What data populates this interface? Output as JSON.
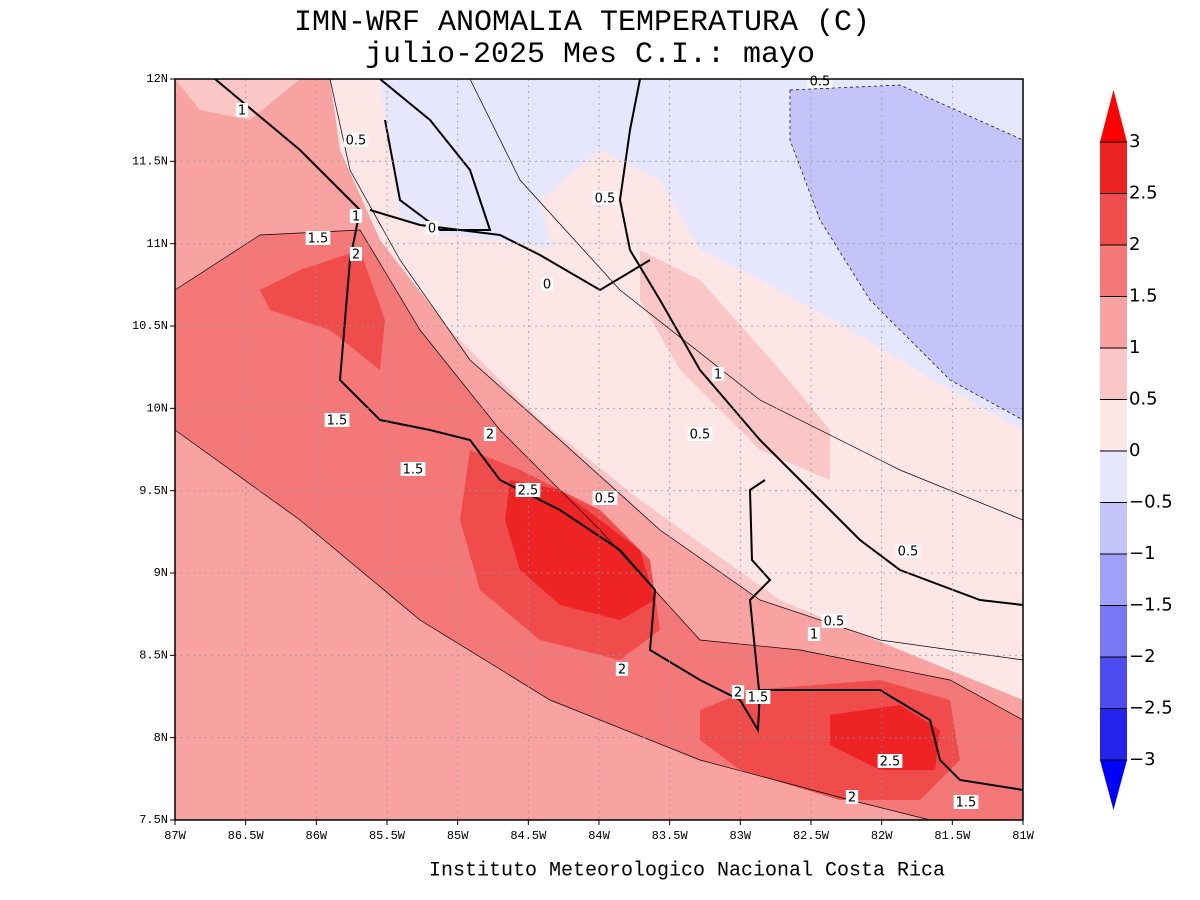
{
  "header": {
    "title": "IMN-WRF  ANOMALIA TEMPERATURA (C)",
    "subtitle": "julio-2025 Mes C.I.: mayo"
  },
  "footer": "Instituto Meteorologico Nacional Costa Rica",
  "x_axis": {
    "ticks": [
      "87W",
      "86.5W",
      "86W",
      "85.5W",
      "85W",
      "84.5W",
      "84W",
      "83.5W",
      "83W",
      "82.5W",
      "82W",
      "81.5W",
      "81W"
    ]
  },
  "y_axis": {
    "ticks": [
      "12N",
      "11.5N",
      "11N",
      "10.5N",
      "10N",
      "9.5N",
      "9N",
      "8.5N",
      "8N",
      "7.5N"
    ]
  },
  "colorbar": {
    "ticks": [
      "3",
      "2.5",
      "2",
      "1.5",
      "1",
      "0.5",
      "0",
      "−0.5",
      "−1",
      "−1.5",
      "−2",
      "−2.5",
      "−3"
    ],
    "colors": [
      "#ff0000",
      "#ee2424",
      "#f04c4c",
      "#f47878",
      "#f8a2a2",
      "#fbc6c6",
      "#fde6e6",
      "#e6e6fc",
      "#c4c4fa",
      "#a0a0f8",
      "#7878f4",
      "#4c4cf0",
      "#2424ee",
      "#0000ff"
    ]
  },
  "contour_labels": [
    "1",
    "0.5",
    "1",
    "1.5",
    "0",
    "2",
    "0",
    "0.5",
    "1",
    "0.5",
    "2",
    "1.5",
    "1.5",
    "2.5",
    "0.5",
    "0.5",
    "0.5",
    "1",
    "2",
    "2",
    "1.5",
    "2.5",
    "2",
    "1.5",
    "0.5"
  ]
}
